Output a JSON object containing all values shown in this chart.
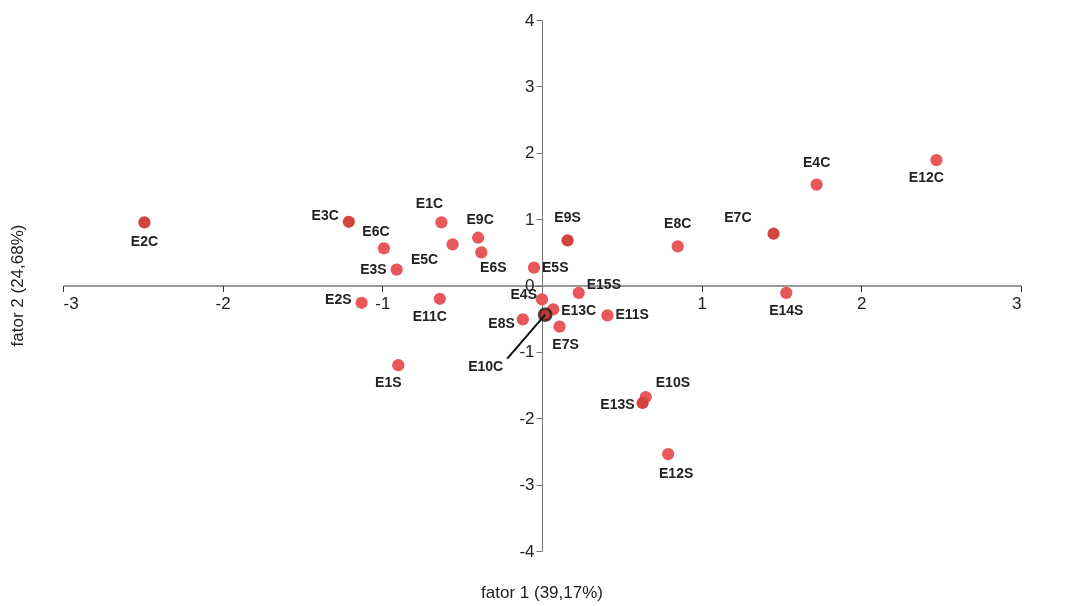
{
  "chart_data": {
    "type": "scatter",
    "xlabel": "fator 1 (39,17%)",
    "ylabel": "fator 2 (24,68%)",
    "xlim": [
      -3,
      3
    ],
    "ylim": [
      -4,
      4
    ],
    "xticks": [
      -3,
      -2,
      -1,
      1,
      2,
      3
    ],
    "yticks": [
      -4,
      -3,
      -2,
      -1,
      0,
      1,
      2,
      3,
      4
    ],
    "grid": false,
    "marker": "circle",
    "series": [
      {
        "x": [
          -2.49,
          -1.21,
          -0.99,
          -0.91,
          -0.63,
          -0.56,
          -0.4,
          -0.38,
          -0.05,
          0.16,
          0.85,
          1.45,
          1.72,
          2.47,
          1.53,
          -1.13,
          -0.64,
          0.23,
          0.0,
          0.07,
          -0.12,
          0.11,
          0.41,
          -0.9,
          0.65,
          0.63,
          0.79,
          0.02
        ],
        "values": [
          0.95,
          0.96,
          0.56,
          0.24,
          0.95,
          0.62,
          0.72,
          0.5,
          0.27,
          0.68,
          0.59,
          0.78,
          1.52,
          1.89,
          -0.11,
          -0.26,
          -0.2,
          -0.11,
          -0.21,
          -0.36,
          -0.51,
          -0.62,
          -0.45,
          -1.2,
          -1.68,
          -1.77,
          -2.54,
          -0.44
        ],
        "colors": [
          "#d2453f",
          "#d2453f",
          "#e8575a",
          "#e8575a",
          "#e8575a",
          "#e8575a",
          "#e8575a",
          "#e8575a",
          "#e8575a",
          "#d2453f",
          "#e8575a",
          "#d2453f",
          "#e8575a",
          "#e8575a",
          "#e8575a",
          "#e8575a",
          "#e8575a",
          "#e8575a",
          "#e8575a",
          "#e8575a",
          "#e8575a",
          "#e8575a",
          "#e8575a",
          "#e8575a",
          "#e8575a",
          "#d2453f",
          "#e8575a",
          "#b83a36"
        ]
      }
    ],
    "annotations": [
      {
        "text": "E2C",
        "x": -2.49,
        "y": 0.95
      },
      {
        "text": "E3C",
        "x": -1.21,
        "y": 0.96
      },
      {
        "text": "E6C",
        "x": -0.99,
        "y": 0.56
      },
      {
        "text": "E3S",
        "x": -0.91,
        "y": 0.24
      },
      {
        "text": "E1C",
        "x": -0.63,
        "y": 0.95
      },
      {
        "text": "E5C",
        "x": -0.56,
        "y": 0.62
      },
      {
        "text": "E9C",
        "x": -0.4,
        "y": 0.72
      },
      {
        "text": "E6S",
        "x": -0.38,
        "y": 0.5
      },
      {
        "text": "E5S",
        "x": -0.05,
        "y": 0.27
      },
      {
        "text": "E9S",
        "x": 0.16,
        "y": 0.68
      },
      {
        "text": "E8C",
        "x": 0.85,
        "y": 0.59
      },
      {
        "text": "E7C",
        "x": 1.45,
        "y": 0.78
      },
      {
        "text": "E4C",
        "x": 1.72,
        "y": 1.52
      },
      {
        "text": "E12C",
        "x": 2.47,
        "y": 1.89
      },
      {
        "text": "E14S",
        "x": 1.53,
        "y": -0.11
      },
      {
        "text": "E2S",
        "x": -1.13,
        "y": -0.26
      },
      {
        "text": "E11C",
        "x": -0.64,
        "y": -0.2
      },
      {
        "text": "E15S",
        "x": 0.23,
        "y": -0.11
      },
      {
        "text": "E4S",
        "x": 0.0,
        "y": -0.21
      },
      {
        "text": "E13C",
        "x": 0.07,
        "y": -0.36
      },
      {
        "text": "E8S",
        "x": -0.12,
        "y": -0.51
      },
      {
        "text": "E7S",
        "x": 0.11,
        "y": -0.62
      },
      {
        "text": "E11S",
        "x": 0.41,
        "y": -0.45
      },
      {
        "text": "E1S",
        "x": -0.9,
        "y": -1.2
      },
      {
        "text": "E10S",
        "x": 0.65,
        "y": -1.68
      },
      {
        "text": "E13S",
        "x": 0.63,
        "y": -1.77
      },
      {
        "text": "E12S",
        "x": 0.79,
        "y": -2.54
      },
      {
        "text": "E10C",
        "x": 0.02,
        "y": -0.44
      }
    ]
  }
}
